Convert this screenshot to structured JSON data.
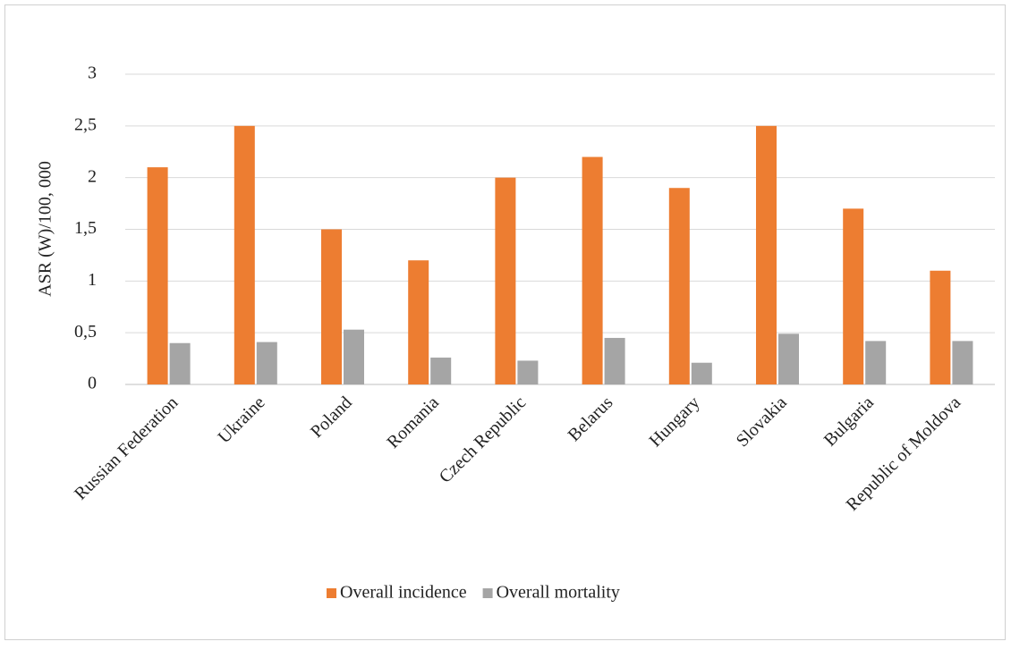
{
  "chart_data": {
    "type": "bar",
    "y_label": "ASR (W)/100, 000",
    "categories": [
      "Russian Federation",
      "Ukraine",
      "Poland",
      "Romania",
      "Czech Republic",
      "Belarus",
      "Hungary",
      "Slovakia",
      "Bulgaria",
      "Republic of Moldova"
    ],
    "series": [
      {
        "name": "Overall incidence",
        "color": "#ed7d31",
        "values": [
          2.1,
          2.5,
          1.5,
          1.2,
          2.0,
          2.2,
          1.9,
          2.5,
          1.7,
          1.1
        ]
      },
      {
        "name": "Overall mortality",
        "color": "#a5a5a5",
        "values": [
          0.4,
          0.41,
          0.53,
          0.26,
          0.23,
          0.45,
          0.21,
          0.49,
          0.42,
          0.42
        ]
      }
    ],
    "ylim": [
      0,
      3
    ],
    "yticks": [
      0,
      {
        "value": 0.5,
        "label": "0,5"
      },
      1,
      {
        "value": 1.5,
        "label": "1,5"
      },
      2,
      {
        "value": 2.5,
        "label": "2,5"
      },
      3
    ],
    "grid": true,
    "legend": "bottom"
  }
}
